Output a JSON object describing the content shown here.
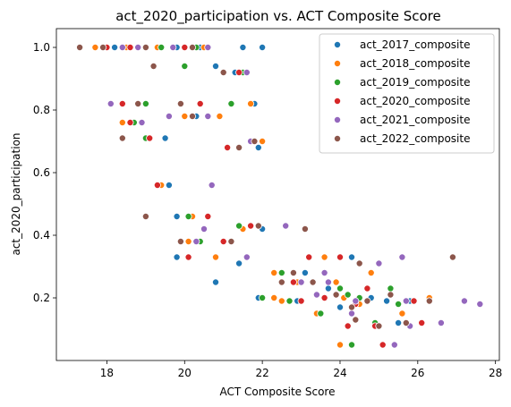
{
  "chart_data": {
    "type": "scatter",
    "title": "act_2020_participation vs. ACT Composite Score",
    "xlabel": "ACT Composite Score",
    "ylabel": "act_2020_participation",
    "xlim": [
      16.7,
      28.1
    ],
    "ylim": [
      0.0,
      1.06
    ],
    "xticks": [
      18,
      20,
      22,
      24,
      26,
      28
    ],
    "xtick_labels": [
      "18",
      "20",
      "22",
      "24",
      "26",
      "28"
    ],
    "yticks": [
      0.2,
      0.4,
      0.6,
      0.8,
      1.0
    ],
    "ytick_labels": [
      "0.2",
      "0.4",
      "0.6",
      "0.8",
      "1.0"
    ],
    "grid": false,
    "legend_position": "top-right",
    "series": [
      {
        "name": "act_2017_composite",
        "color": "#1f77b4",
        "points": [
          [
            21.5,
            1.0
          ],
          [
            22.0,
            1.0
          ],
          [
            19.8,
            1.0
          ],
          [
            20.4,
            1.0
          ],
          [
            19.0,
            1.0
          ],
          [
            18.2,
            1.0
          ],
          [
            21.8,
            0.82
          ],
          [
            19.5,
            0.71
          ],
          [
            20.3,
            0.78
          ],
          [
            18.9,
            0.76
          ],
          [
            21.9,
            0.68
          ],
          [
            21.3,
            0.92
          ],
          [
            20.8,
            0.94
          ],
          [
            19.6,
            0.56
          ],
          [
            19.8,
            0.46
          ],
          [
            22.0,
            0.42
          ],
          [
            19.8,
            0.33
          ],
          [
            21.4,
            0.31
          ],
          [
            20.8,
            0.25
          ],
          [
            21.9,
            0.2
          ],
          [
            22.9,
            0.19
          ],
          [
            24.3,
            0.33
          ],
          [
            23.7,
            0.23
          ],
          [
            24.0,
            0.17
          ],
          [
            24.2,
            0.11
          ],
          [
            25.5,
            0.12
          ],
          [
            25.2,
            0.19
          ],
          [
            26.3,
            0.2
          ],
          [
            24.8,
            0.2
          ],
          [
            25.8,
            0.19
          ],
          [
            23.1,
            0.28
          ]
        ]
      },
      {
        "name": "act_2018_composite",
        "color": "#ff7f0e",
        "points": [
          [
            17.7,
            1.0
          ],
          [
            20.5,
            1.0
          ],
          [
            19.3,
            1.0
          ],
          [
            18.5,
            1.0
          ],
          [
            21.7,
            0.82
          ],
          [
            20.0,
            0.78
          ],
          [
            18.4,
            0.76
          ],
          [
            22.0,
            0.7
          ],
          [
            20.9,
            0.78
          ],
          [
            19.4,
            0.56
          ],
          [
            20.2,
            0.46
          ],
          [
            20.1,
            0.38
          ],
          [
            20.8,
            0.33
          ],
          [
            21.5,
            0.42
          ],
          [
            22.3,
            0.2
          ],
          [
            22.3,
            0.28
          ],
          [
            22.9,
            0.25
          ],
          [
            23.6,
            0.33
          ],
          [
            23.4,
            0.15
          ],
          [
            24.1,
            0.2
          ],
          [
            24.0,
            0.05
          ],
          [
            24.5,
            0.18
          ],
          [
            24.8,
            0.28
          ],
          [
            24.9,
            0.12
          ],
          [
            25.6,
            0.15
          ],
          [
            26.3,
            0.2
          ],
          [
            22.5,
            0.19
          ],
          [
            23.9,
            0.25
          ]
        ]
      },
      {
        "name": "act_2019_composite",
        "color": "#2ca02c",
        "points": [
          [
            17.9,
            1.0
          ],
          [
            20.3,
            1.0
          ],
          [
            19.4,
            1.0
          ],
          [
            19.0,
            0.82
          ],
          [
            20.0,
            0.94
          ],
          [
            21.2,
            0.82
          ],
          [
            18.7,
            0.76
          ],
          [
            19.0,
            0.71
          ],
          [
            21.5,
            0.92
          ],
          [
            20.1,
            0.46
          ],
          [
            20.4,
            0.38
          ],
          [
            21.4,
            0.43
          ],
          [
            22.5,
            0.28
          ],
          [
            22.0,
            0.2
          ],
          [
            22.7,
            0.19
          ],
          [
            23.3,
            0.25
          ],
          [
            24.0,
            0.23
          ],
          [
            24.3,
            0.05
          ],
          [
            24.5,
            0.2
          ],
          [
            24.9,
            0.12
          ],
          [
            25.3,
            0.23
          ],
          [
            25.5,
            0.18
          ],
          [
            24.2,
            0.21
          ],
          [
            23.5,
            0.15
          ]
        ]
      },
      {
        "name": "act_2020_composite",
        "color": "#d62728",
        "points": [
          [
            18.0,
            1.0
          ],
          [
            20.0,
            1.0
          ],
          [
            18.6,
            1.0
          ],
          [
            18.4,
            0.82
          ],
          [
            20.4,
            0.82
          ],
          [
            18.6,
            0.76
          ],
          [
            19.1,
            0.71
          ],
          [
            21.1,
            0.68
          ],
          [
            20.6,
            0.78
          ],
          [
            21.4,
            0.92
          ],
          [
            19.3,
            0.56
          ],
          [
            20.6,
            0.46
          ],
          [
            21.0,
            0.38
          ],
          [
            20.1,
            0.33
          ],
          [
            21.7,
            0.43
          ],
          [
            22.8,
            0.25
          ],
          [
            22.8,
            0.28
          ],
          [
            23.2,
            0.33
          ],
          [
            23.6,
            0.2
          ],
          [
            24.0,
            0.33
          ],
          [
            24.2,
            0.11
          ],
          [
            24.7,
            0.23
          ],
          [
            24.9,
            0.11
          ],
          [
            25.1,
            0.05
          ],
          [
            25.9,
            0.19
          ],
          [
            26.1,
            0.12
          ],
          [
            24.4,
            0.18
          ],
          [
            23.0,
            0.19
          ]
        ]
      },
      {
        "name": "act_2021_composite",
        "color": "#9467bd",
        "points": [
          [
            18.8,
            1.0
          ],
          [
            20.6,
            1.0
          ],
          [
            19.7,
            1.0
          ],
          [
            18.4,
            1.0
          ],
          [
            18.1,
            0.82
          ],
          [
            19.6,
            0.78
          ],
          [
            18.9,
            0.76
          ],
          [
            20.7,
            0.56
          ],
          [
            21.6,
            0.92
          ],
          [
            21.7,
            0.7
          ],
          [
            20.6,
            0.78
          ],
          [
            20.5,
            0.42
          ],
          [
            22.6,
            0.43
          ],
          [
            20.3,
            0.38
          ],
          [
            23.6,
            0.28
          ],
          [
            21.6,
            0.33
          ],
          [
            23.0,
            0.25
          ],
          [
            23.4,
            0.21
          ],
          [
            23.7,
            0.25
          ],
          [
            24.4,
            0.19
          ],
          [
            25.0,
            0.31
          ],
          [
            25.6,
            0.33
          ],
          [
            25.7,
            0.19
          ],
          [
            25.4,
            0.05
          ],
          [
            26.6,
            0.12
          ],
          [
            27.2,
            0.19
          ],
          [
            27.6,
            0.18
          ],
          [
            25.8,
            0.11
          ],
          [
            24.3,
            0.15
          ]
        ]
      },
      {
        "name": "act_2022_composite",
        "color": "#8c564b",
        "points": [
          [
            17.3,
            1.0
          ],
          [
            19.0,
            1.0
          ],
          [
            20.2,
            1.0
          ],
          [
            17.9,
            1.0
          ],
          [
            18.8,
            0.82
          ],
          [
            19.9,
            0.82
          ],
          [
            18.4,
            0.71
          ],
          [
            19.2,
            0.94
          ],
          [
            21.0,
            0.92
          ],
          [
            21.4,
            0.68
          ],
          [
            21.8,
            0.7
          ],
          [
            20.2,
            0.78
          ],
          [
            19.0,
            0.46
          ],
          [
            19.9,
            0.38
          ],
          [
            21.2,
            0.38
          ],
          [
            21.9,
            0.43
          ],
          [
            23.1,
            0.42
          ],
          [
            22.5,
            0.25
          ],
          [
            22.8,
            0.28
          ],
          [
            23.3,
            0.25
          ],
          [
            23.9,
            0.21
          ],
          [
            24.3,
            0.17
          ],
          [
            24.5,
            0.31
          ],
          [
            24.7,
            0.19
          ],
          [
            25.0,
            0.11
          ],
          [
            25.3,
            0.21
          ],
          [
            26.9,
            0.33
          ],
          [
            26.3,
            0.19
          ],
          [
            25.7,
            0.12
          ],
          [
            24.4,
            0.13
          ]
        ]
      }
    ]
  }
}
